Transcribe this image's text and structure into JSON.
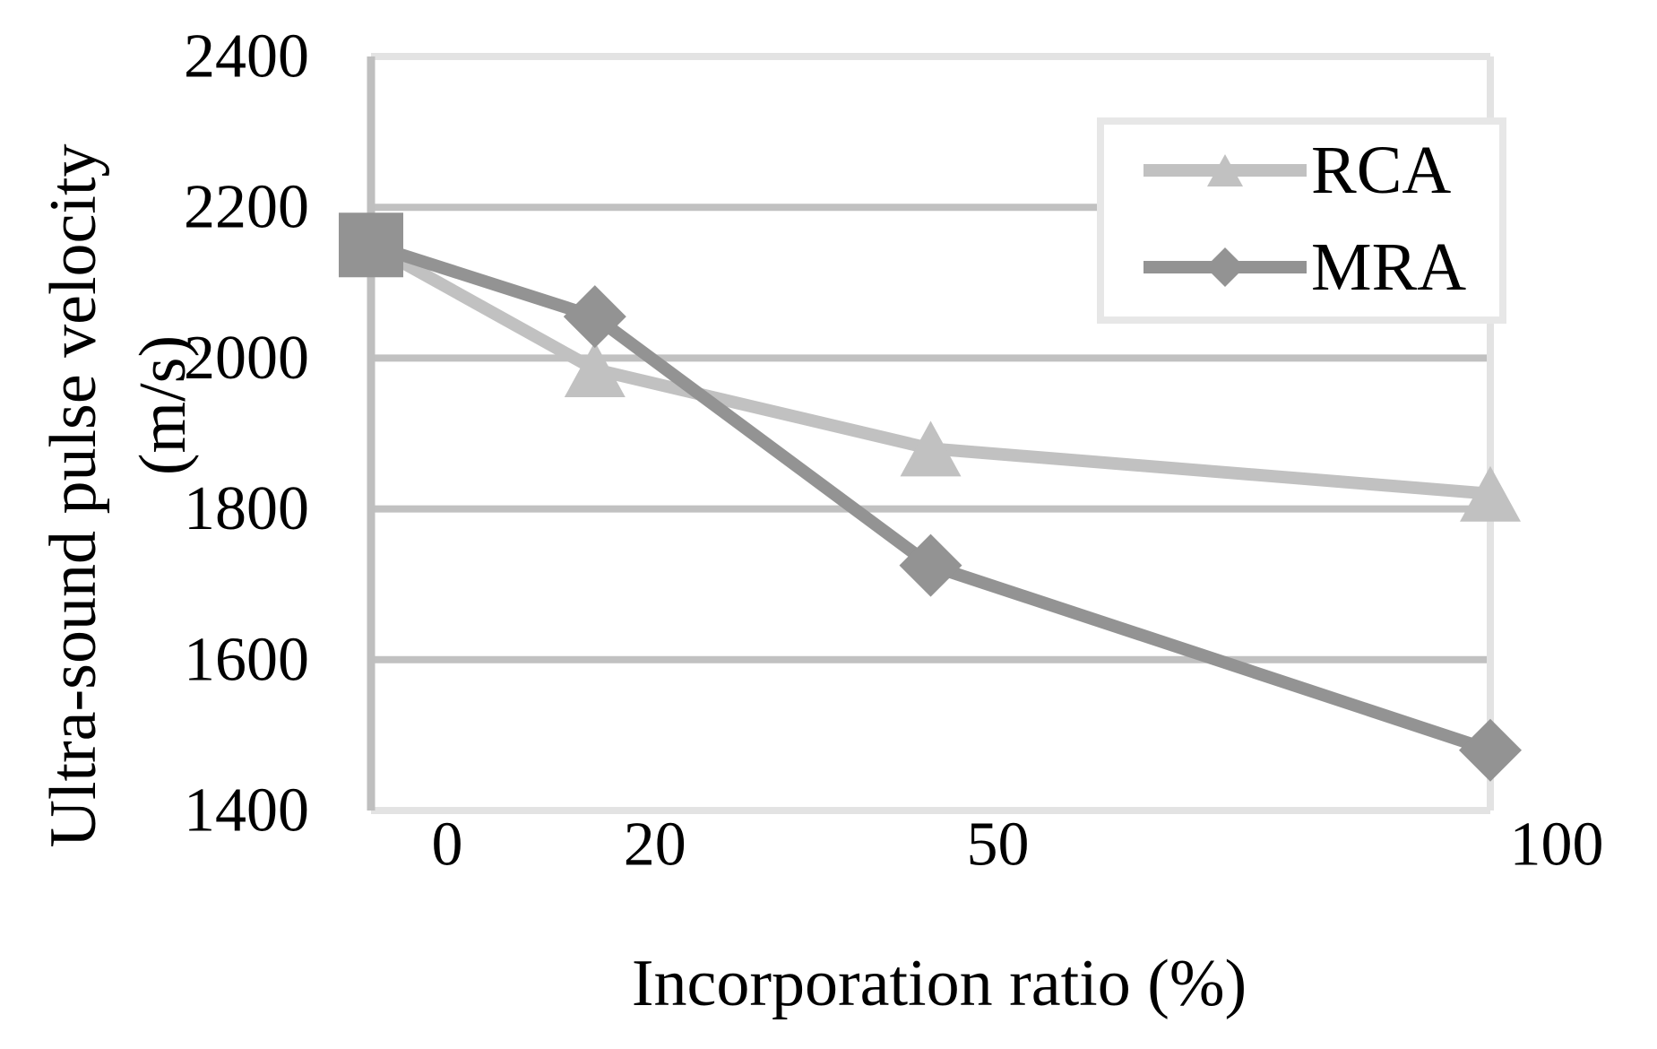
{
  "figure": {
    "background": "#ffffff"
  },
  "chart_data": {
    "type": "line",
    "title": "",
    "xlabel": "Incorporation ratio (%)",
    "ylabel": "Ultra-sound pulse velocity (m/s)",
    "ylabel_lines": [
      "Ultra-sound pulse velocity",
      "(m/s)"
    ],
    "x": [
      0,
      20,
      50,
      100
    ],
    "x_tick_labels": [
      "0",
      "20",
      "50",
      "100"
    ],
    "y_ticks": [
      1400,
      1600,
      1800,
      2000,
      2200,
      2400
    ],
    "y_tick_labels": [
      "1400",
      "1600",
      "1800",
      "2000",
      "2200",
      "2400"
    ],
    "xlim": [
      0,
      100
    ],
    "ylim": [
      1400,
      2400
    ],
    "grid": "horizontal-only",
    "legend_position": "top-right-inside",
    "series": [
      {
        "name": "RCA",
        "marker": "triangle",
        "color": "#c1c1c1",
        "values": [
          2150,
          1985,
          1880,
          1820
        ]
      },
      {
        "name": "MRA",
        "marker": "diamond",
        "color": "#939393",
        "values": [
          2150,
          2055,
          1725,
          1480
        ]
      }
    ],
    "shared_first_point_marker": {
      "shape": "square",
      "color": "#939393",
      "x": 0,
      "y": 2150
    }
  },
  "legend": {
    "entries": [
      {
        "label": "RCA"
      },
      {
        "label": "MRA"
      }
    ]
  },
  "colors": {
    "rca_series": "#c1c1c1",
    "mra_series": "#939393",
    "gridline": "#c1c1c1",
    "y_axis_line": "#bfbfbf",
    "plot_border": "#e3e3e3",
    "legend_border": "#e7e7e7",
    "legend_fill": "#ffffff",
    "text": "#000000",
    "background": "#ffffff"
  }
}
